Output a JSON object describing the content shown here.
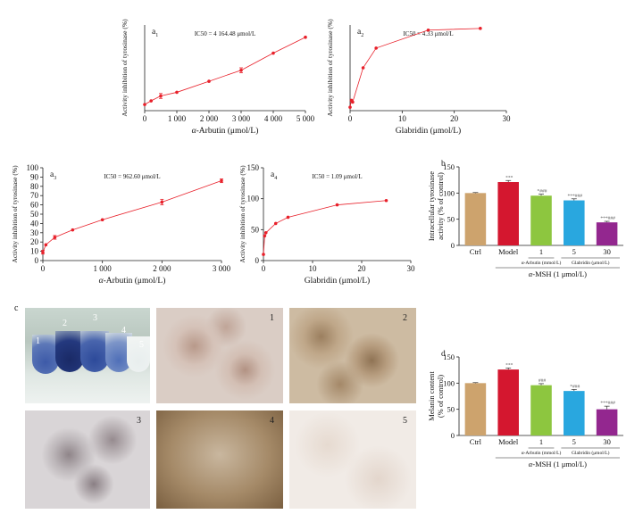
{
  "chart_data": [
    {
      "id": "a1",
      "type": "line",
      "panel": "a",
      "panel_sub": "1",
      "annotation": "IC50 = 4 164.48 μmol/L",
      "xlabel_prefix": "α",
      "xlabel_rest": "-Arbutin (μmol/L)",
      "ylabel": "Activity inhibition of tyrosinase (%)",
      "xlim": [
        0,
        5000
      ],
      "ylim": [
        0,
        70
      ],
      "xticks": [
        0,
        1000,
        2000,
        3000,
        4000,
        5000
      ],
      "xtick_labels": [
        "0",
        "1 000",
        "2 000",
        "3 000",
        "4 000",
        "5 000"
      ],
      "yticks": [],
      "x": [
        0,
        200,
        500,
        1000,
        2000,
        3000,
        4000,
        5000
      ],
      "y": [
        5,
        8,
        12,
        15,
        24,
        33,
        47,
        60
      ],
      "err": [
        0,
        0,
        2,
        0,
        0,
        2,
        0,
        0
      ],
      "color": "#e8202a"
    },
    {
      "id": "a2",
      "type": "line",
      "panel": "a",
      "panel_sub": "2",
      "annotation": "IC50 = 4.33 μmol/L",
      "xlabel_prefix": "",
      "xlabel_rest": "Glabridin (μmol/L)",
      "ylabel": "Activity inhibition of tyrosinase (%)",
      "xlim": [
        0,
        30
      ],
      "ylim": [
        0,
        100
      ],
      "xticks": [
        0,
        10,
        20,
        30
      ],
      "xtick_labels": [
        "0",
        "10",
        "20",
        "30"
      ],
      "yticks": [],
      "x": [
        0,
        0.25,
        0.5,
        2.5,
        5,
        15,
        25
      ],
      "y": [
        4,
        12,
        10,
        50,
        73,
        94,
        96
      ],
      "err": [
        0,
        0,
        0,
        0,
        0,
        0,
        0
      ],
      "color": "#e8202a"
    },
    {
      "id": "a3",
      "type": "line",
      "panel": "a",
      "panel_sub": "3",
      "annotation": "IC50 = 962.60 μmol/L",
      "xlabel_prefix": "α",
      "xlabel_rest": "-Arbutin (μmol/L)",
      "ylabel": "Activity inhibition of tyrosinase (%)",
      "xlim": [
        0,
        3000
      ],
      "ylim": [
        0,
        100
      ],
      "xticks": [
        0,
        1000,
        2000,
        3000
      ],
      "xtick_labels": [
        "0",
        "1 000",
        "2 000",
        "3 000"
      ],
      "yticks": [
        0,
        10,
        20,
        30,
        40,
        50,
        60,
        70,
        80,
        90,
        100
      ],
      "x": [
        0,
        50,
        200,
        500,
        1000,
        2000,
        3000
      ],
      "y": [
        9,
        17,
        25,
        33,
        44,
        63,
        86
      ],
      "err": [
        2,
        0,
        2,
        0,
        0,
        3,
        2
      ],
      "color": "#e8202a"
    },
    {
      "id": "a4",
      "type": "line",
      "panel": "a",
      "panel_sub": "4",
      "annotation": "IC50 = 1.09 μmol/L",
      "xlabel_prefix": "",
      "xlabel_rest": "Glabridin (μmol/L)",
      "ylabel": "Activity inhibition of tyrosinase (%)",
      "xlim": [
        0,
        30
      ],
      "ylim": [
        0,
        150
      ],
      "xticks": [
        0,
        10,
        20,
        30
      ],
      "xtick_labels": [
        "0",
        "10",
        "20",
        "30"
      ],
      "yticks": [
        0,
        50,
        100,
        150
      ],
      "x": [
        0,
        0.25,
        0.5,
        2.5,
        5,
        15,
        25
      ],
      "y": [
        10,
        40,
        45,
        60,
        70,
        90,
        97
      ],
      "err": [
        0,
        0,
        0,
        0,
        0,
        0,
        0
      ],
      "color": "#e8202a"
    },
    {
      "id": "b",
      "type": "bar",
      "panel": "b",
      "ylabel": "Intracellular tyrosinase activity (% of control)",
      "ylim": [
        0,
        150
      ],
      "yticks": [
        0,
        50,
        100,
        150
      ],
      "categories": [
        "Ctrl",
        "Model",
        "1",
        "5",
        "30"
      ],
      "values": [
        100,
        121,
        95,
        86,
        44
      ],
      "err": [
        1,
        3,
        3,
        3,
        2
      ],
      "colors": [
        "#cda36d",
        "#d4172f",
        "#8dc63f",
        "#29a7df",
        "#93278f"
      ],
      "sig": [
        "",
        "***",
        "*###",
        "***###",
        "***###"
      ],
      "group1": "α-Arbutin (mmol/L)",
      "group2": "Glabridin (μmol/L)",
      "msh": "α-MSH (1 μmol/L)"
    },
    {
      "id": "d",
      "type": "bar",
      "panel": "d",
      "ylabel": "Melanin content (% of control)",
      "ylim": [
        0,
        150
      ],
      "yticks": [
        0,
        50,
        100,
        150
      ],
      "categories": [
        "Ctrl",
        "Model",
        "1",
        "5",
        "30"
      ],
      "values": [
        100,
        126,
        96,
        85,
        50
      ],
      "err": [
        1,
        3,
        3,
        3,
        6
      ],
      "colors": [
        "#cda36d",
        "#d4172f",
        "#8dc63f",
        "#29a7df",
        "#93278f"
      ],
      "sig": [
        "",
        "***",
        "###",
        "*###",
        "***###"
      ],
      "group1": "α-Arbutin (mmol/L)",
      "group2": "Glabridin (μmol/L)",
      "msh": "α-MSH (1 μmol/L)"
    }
  ],
  "panel_c": {
    "label": "c",
    "photo_numbers": [
      "1",
      "2",
      "3",
      "4",
      "5"
    ],
    "tube_numbers": [
      "1",
      "2",
      "3",
      "4",
      "5"
    ]
  }
}
